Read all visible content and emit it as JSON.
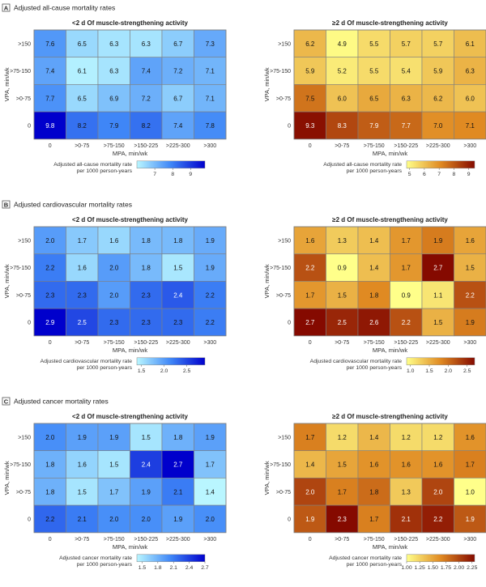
{
  "chart_data": [
    {
      "section": "A",
      "section_title": "Adjusted all-cause mortality rates",
      "type": "heatmap",
      "xlabel": "MPA, min/wk",
      "ylabel": "VPA, min/wk",
      "x_categories": [
        "0",
        ">0-75",
        ">75-150",
        ">150-225",
        ">225-300",
        ">300"
      ],
      "y_categories": [
        ">150",
        ">75-150",
        ">0-75",
        "0"
      ],
      "panels": [
        {
          "title": "<2 d Of muscle-strengthening activity",
          "scheme": "blue",
          "values": [
            [
              7.6,
              6.5,
              6.3,
              6.3,
              6.7,
              7.3
            ],
            [
              7.4,
              6.1,
              6.3,
              7.4,
              7.2,
              7.1
            ],
            [
              7.7,
              6.5,
              6.9,
              7.2,
              6.7,
              7.1
            ],
            [
              9.8,
              8.2,
              7.9,
              8.2,
              7.4,
              7.8
            ]
          ],
          "legend_title": [
            "Adjusted all-cause mortality rate",
            "per 1000 person-years"
          ],
          "legend_range": [
            6.0,
            9.8
          ],
          "legend_ticks": [
            "7",
            "8",
            "9"
          ],
          "legend_tick_values": [
            7,
            8,
            9
          ]
        },
        {
          "title": "≥2 d Of muscle-strengthening activity",
          "scheme": "orange",
          "values": [
            [
              6.2,
              4.9,
              5.5,
              5.7,
              5.7,
              6.1
            ],
            [
              5.9,
              5.2,
              5.5,
              5.4,
              5.9,
              6.3
            ],
            [
              7.5,
              6.0,
              6.5,
              6.3,
              6.2,
              6.0
            ],
            [
              9.3,
              8.3,
              7.9,
              7.7,
              7.0,
              7.1
            ]
          ],
          "legend_title": [
            "Adjusted all-cause mortality rate",
            "per 1000 person-years"
          ],
          "legend_range": [
            4.8,
            9.4
          ],
          "legend_ticks": [
            "5",
            "6",
            "7",
            "8",
            "9"
          ],
          "legend_tick_values": [
            5,
            6,
            7,
            8,
            9
          ]
        }
      ]
    },
    {
      "section": "B",
      "section_title": "Adjusted cardiovascular mortality rates",
      "type": "heatmap",
      "xlabel": "MPA, min/wk",
      "ylabel": "VPA, min/wk",
      "x_categories": [
        "0",
        ">0-75",
        ">75-150",
        ">150-225",
        ">225-300",
        ">300"
      ],
      "y_categories": [
        ">150",
        ">75-150",
        ">0-75",
        "0"
      ],
      "panels": [
        {
          "title": "<2 d Of muscle-strengthening activity",
          "scheme": "blue",
          "values": [
            [
              2.0,
              1.7,
              1.6,
              1.8,
              1.8,
              1.9
            ],
            [
              2.2,
              1.6,
              2.0,
              1.8,
              1.5,
              1.9
            ],
            [
              2.3,
              2.3,
              2.0,
              2.3,
              2.4,
              2.2
            ],
            [
              2.9,
              2.5,
              2.3,
              2.3,
              2.3,
              2.2
            ]
          ],
          "legend_title": [
            "Adjusted cardiovascular mortality rate",
            "per 1000 person-years"
          ],
          "legend_range": [
            1.4,
            2.9
          ],
          "legend_ticks": [
            "1.5",
            "2.0",
            "2.5"
          ],
          "legend_tick_values": [
            1.5,
            2.0,
            2.5
          ]
        },
        {
          "title": "≥2 d Of muscle-strengthening activity",
          "scheme": "orange",
          "values": [
            [
              1.6,
              1.3,
              1.4,
              1.7,
              1.9,
              1.6
            ],
            [
              2.2,
              0.9,
              1.4,
              1.7,
              2.7,
              1.5
            ],
            [
              1.7,
              1.5,
              1.8,
              0.9,
              1.1,
              2.2
            ],
            [
              2.7,
              2.5,
              2.6,
              2.2,
              1.5,
              1.9
            ]
          ],
          "legend_title": [
            "Adjusted cardiovascular mortality rate",
            "per 1000 person-years"
          ],
          "legend_range": [
            0.9,
            2.7
          ],
          "legend_ticks": [
            "1.0",
            "1.5",
            "2.0",
            "2.5"
          ],
          "legend_tick_values": [
            1.0,
            1.5,
            2.0,
            2.5
          ]
        }
      ]
    },
    {
      "section": "C",
      "section_title": "Adjusted cancer mortality rates",
      "type": "heatmap",
      "xlabel": "MPA, min/wk",
      "ylabel": "VPA, min/wk",
      "x_categories": [
        "0",
        ">0-75",
        ">75-150",
        ">150-225",
        ">225-300",
        ">300"
      ],
      "y_categories": [
        ">150",
        ">75-150",
        ">0-75",
        "0"
      ],
      "panels": [
        {
          "title": "<2 d Of muscle-strengthening activity",
          "scheme": "blue",
          "values": [
            [
              2.0,
              1.9,
              1.9,
              1.5,
              1.8,
              1.9
            ],
            [
              1.8,
              1.6,
              1.5,
              2.4,
              2.7,
              1.7
            ],
            [
              1.8,
              1.5,
              1.7,
              1.9,
              2.1,
              1.4
            ],
            [
              2.2,
              2.1,
              2.0,
              2.0,
              1.9,
              2.0
            ]
          ],
          "legend_title": [
            "Adjusted cancer mortality rate",
            "per 1000 person-years"
          ],
          "legend_range": [
            1.4,
            2.7
          ],
          "legend_ticks": [
            "1.5",
            "1.8",
            "2.1",
            "2.4",
            "2.7"
          ],
          "legend_tick_values": [
            1.5,
            1.8,
            2.1,
            2.4,
            2.7
          ]
        },
        {
          "title": "≥2 d Of muscle-strengthening activity",
          "scheme": "orange",
          "values": [
            [
              1.7,
              1.2,
              1.4,
              1.2,
              1.2,
              1.6
            ],
            [
              1.4,
              1.5,
              1.6,
              1.6,
              1.6,
              1.7
            ],
            [
              2.0,
              1.7,
              1.8,
              1.3,
              2.0,
              1.0
            ],
            [
              1.9,
              2.3,
              1.7,
              2.1,
              2.2,
              1.9
            ]
          ],
          "legend_title": [
            "Adjusted cancer mortality rate",
            "per 1000 person-years"
          ],
          "legend_range": [
            1.0,
            2.3
          ],
          "legend_ticks": [
            "1.00",
            "1.25",
            "1.50",
            "1.75",
            "2.00",
            "2.25"
          ],
          "legend_tick_values": [
            1.0,
            1.25,
            1.5,
            1.75,
            2.0,
            2.25
          ]
        }
      ]
    }
  ],
  "colors": {
    "blue_low": "#b9f6ff",
    "blue_mid": "#3f86f7",
    "blue_high": "#0000cc",
    "orange_low": "#ffff8a",
    "orange_mid": "#e08a22",
    "orange_high": "#850a00",
    "grid_line": "#7f7f7f",
    "badge_border": "#555555"
  }
}
